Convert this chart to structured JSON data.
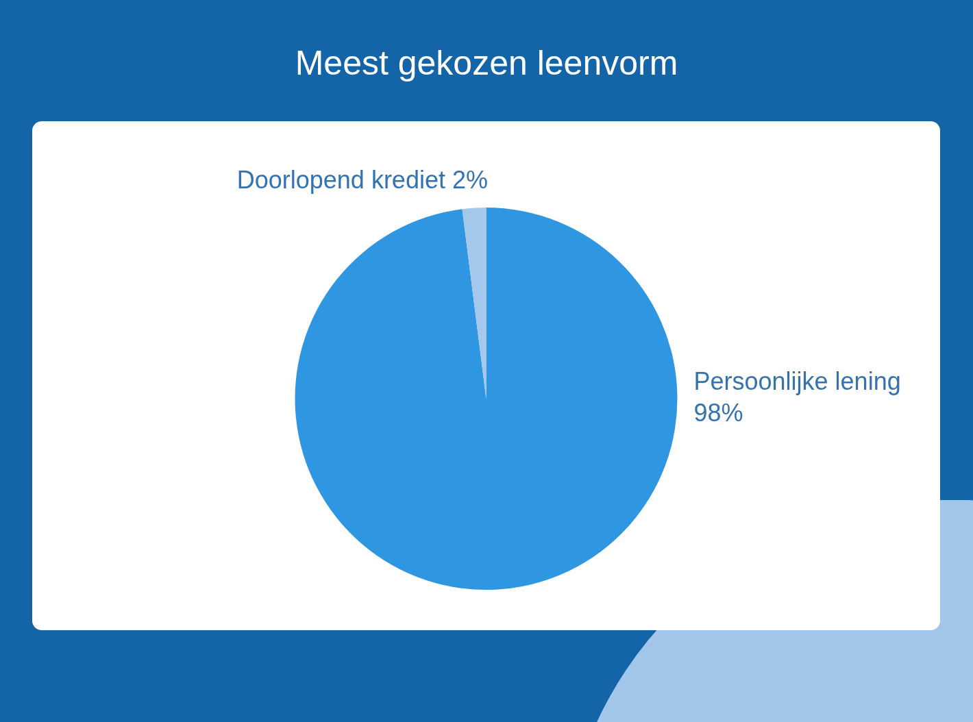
{
  "chart_data": {
    "type": "pie",
    "title": "Meest gekozen leenvorm",
    "categories": [
      "Persoonlijke lening",
      "Doorlopend krediet"
    ],
    "values": [
      98,
      2
    ],
    "colors": [
      "#2f96e2",
      "#a3c8ec"
    ],
    "value_labels": [
      "98%",
      "2%"
    ]
  }
}
